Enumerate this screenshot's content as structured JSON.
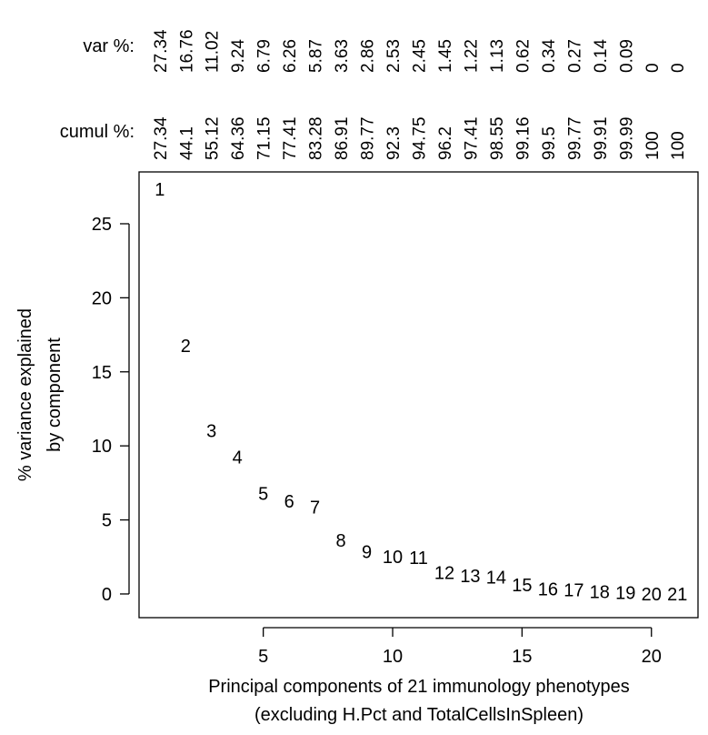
{
  "chart_data": {
    "type": "scatter",
    "marker": "component-number",
    "xlabel_line1": "Principal components of 21 immunology phenotypes",
    "xlabel_line2": "(excluding H.Pct and TotalCellsInSpleen)",
    "ylabel_line1": "% variance explained",
    "ylabel_line2": "by component",
    "xlim": [
      0.2,
      21.8
    ],
    "ylim": [
      -1.6,
      28.5
    ],
    "xticks": [
      5,
      10,
      15,
      20
    ],
    "yticks": [
      0,
      5,
      10,
      15,
      20,
      25
    ],
    "grid": false,
    "points": [
      {
        "x": 1,
        "y": 27.34,
        "label": "1"
      },
      {
        "x": 2,
        "y": 16.76,
        "label": "2"
      },
      {
        "x": 3,
        "y": 11.02,
        "label": "3"
      },
      {
        "x": 4,
        "y": 9.24,
        "label": "4"
      },
      {
        "x": 5,
        "y": 6.79,
        "label": "5"
      },
      {
        "x": 6,
        "y": 6.26,
        "label": "6"
      },
      {
        "x": 7,
        "y": 5.87,
        "label": "7"
      },
      {
        "x": 8,
        "y": 3.63,
        "label": "8"
      },
      {
        "x": 9,
        "y": 2.86,
        "label": "9"
      },
      {
        "x": 10,
        "y": 2.53,
        "label": "10"
      },
      {
        "x": 11,
        "y": 2.45,
        "label": "11"
      },
      {
        "x": 12,
        "y": 1.45,
        "label": "12"
      },
      {
        "x": 13,
        "y": 1.22,
        "label": "13"
      },
      {
        "x": 14,
        "y": 1.13,
        "label": "14"
      },
      {
        "x": 15,
        "y": 0.62,
        "label": "15"
      },
      {
        "x": 16,
        "y": 0.34,
        "label": "16"
      },
      {
        "x": 17,
        "y": 0.27,
        "label": "17"
      },
      {
        "x": 18,
        "y": 0.14,
        "label": "18"
      },
      {
        "x": 19,
        "y": 0.09,
        "label": "19"
      },
      {
        "x": 20,
        "y": 0,
        "label": "20"
      },
      {
        "x": 21,
        "y": 0,
        "label": "21"
      }
    ],
    "var_label": "var %:",
    "var_pct": [
      "27.34",
      "16.76",
      "11.02",
      "9.24",
      "6.79",
      "6.26",
      "5.87",
      "3.63",
      "2.86",
      "2.53",
      "2.45",
      "1.45",
      "1.22",
      "1.13",
      "0.62",
      "0.34",
      "0.27",
      "0.14",
      "0.09",
      "0",
      "0"
    ],
    "cumul_label": "cumul %:",
    "cumul_pct": [
      "27.34",
      "44.1",
      "55.12",
      "64.36",
      "71.15",
      "77.41",
      "83.28",
      "86.91",
      "89.77",
      "92.3",
      "94.75",
      "96.2",
      "97.41",
      "98.55",
      "99.16",
      "99.5",
      "99.77",
      "99.91",
      "99.99",
      "100",
      "100"
    ]
  }
}
